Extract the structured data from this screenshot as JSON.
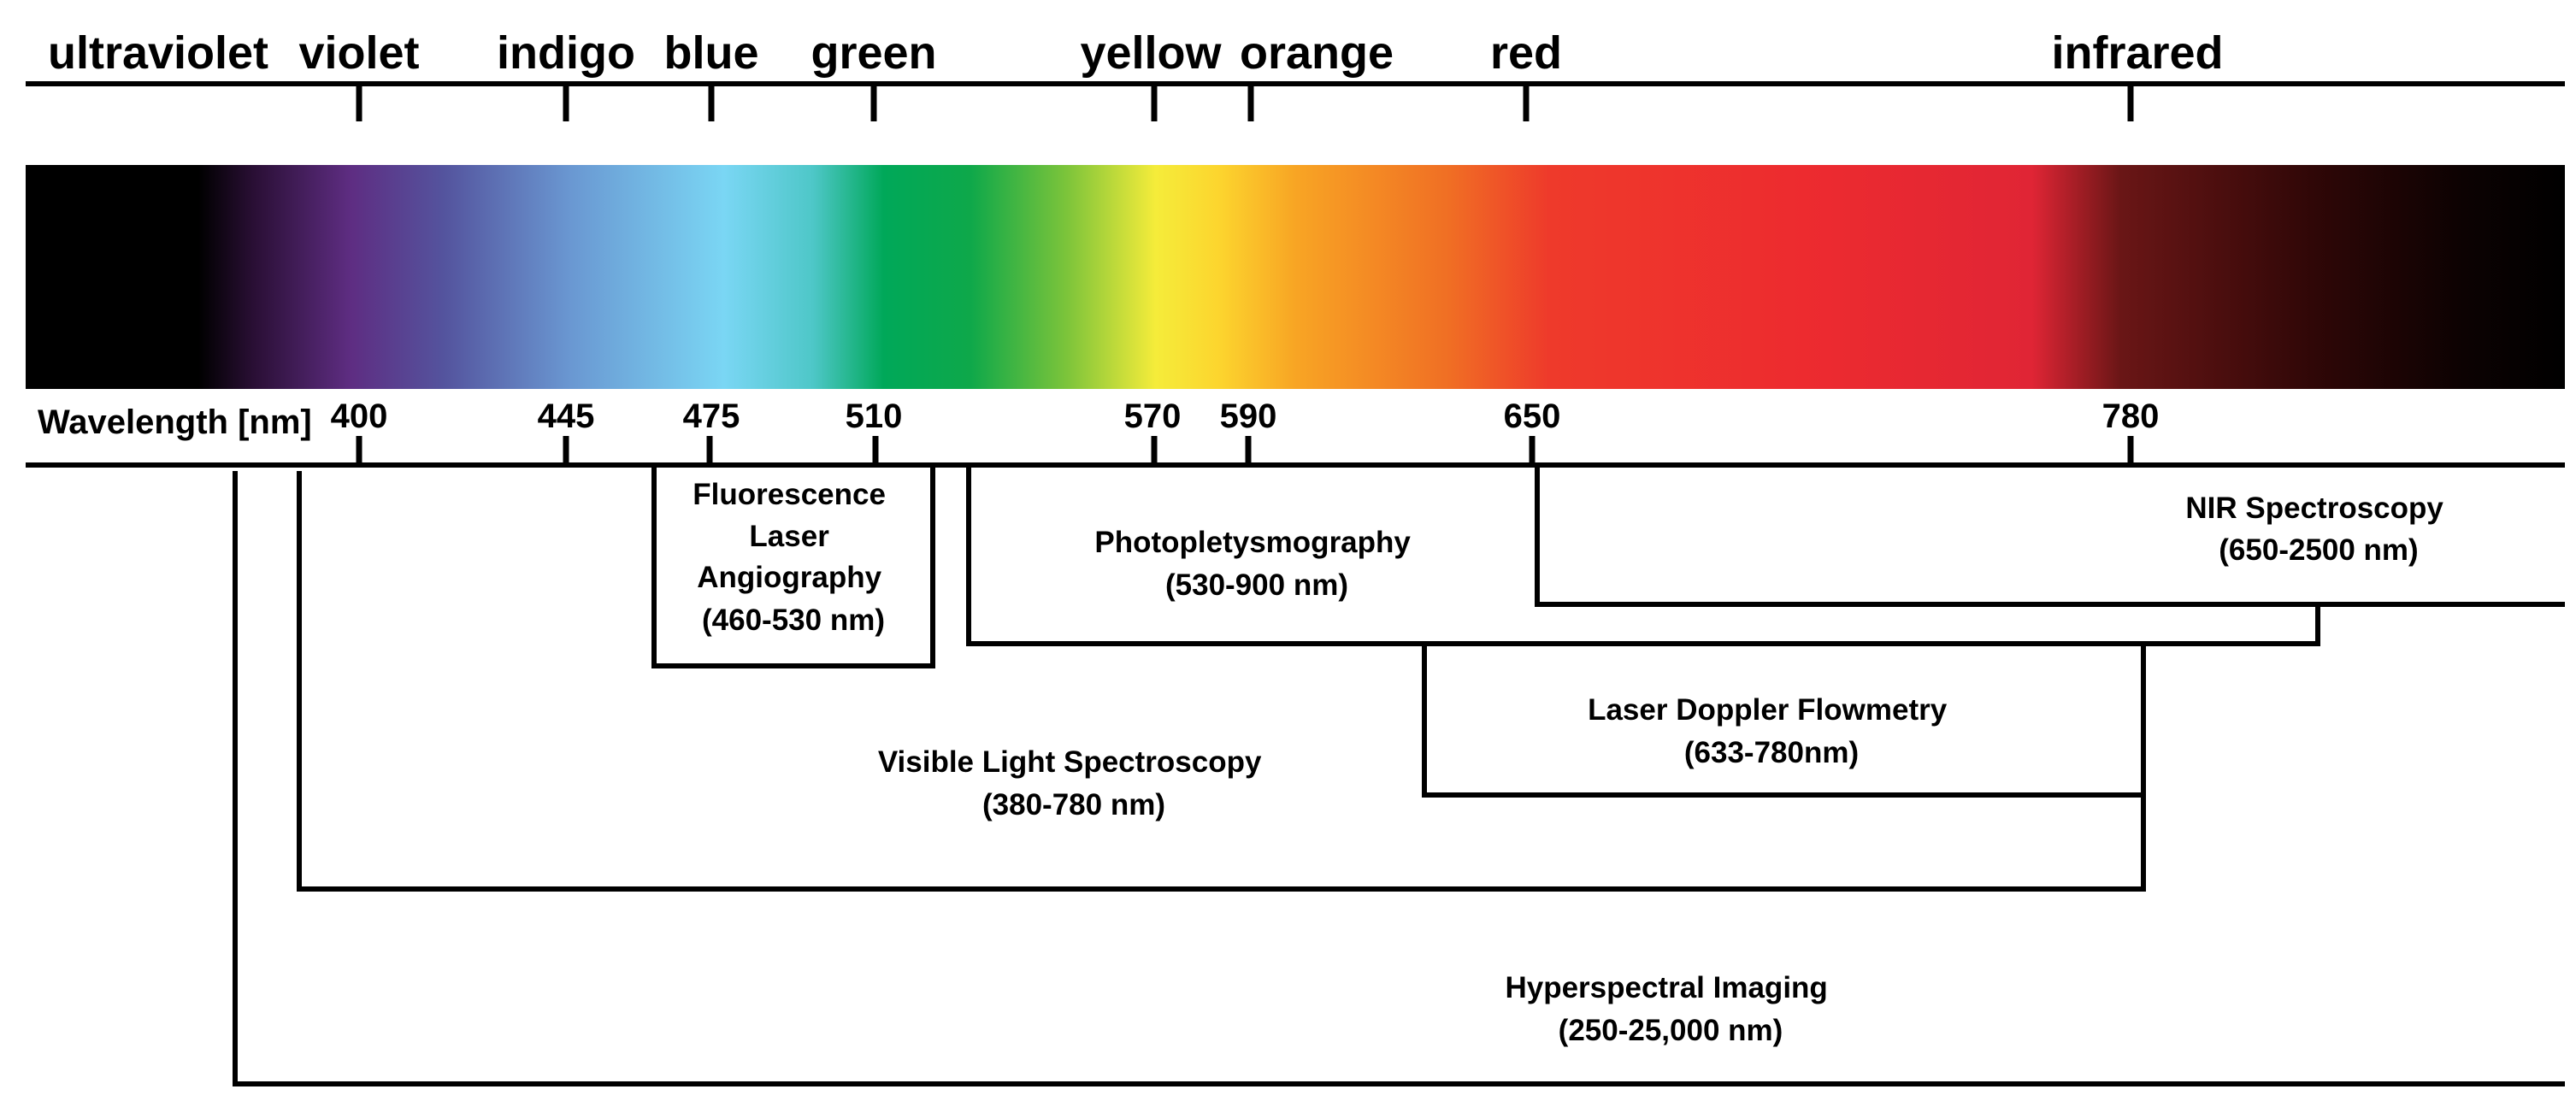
{
  "colors": {
    "spectrum_stops": [
      {
        "offset": 0.0,
        "color": "#000000"
      },
      {
        "offset": 0.068,
        "color": "#000000"
      },
      {
        "offset": 0.09,
        "color": "#2a0f35"
      },
      {
        "offset": 0.128,
        "color": "#5e2d82"
      },
      {
        "offset": 0.165,
        "color": "#54549e"
      },
      {
        "offset": 0.215,
        "color": "#6a98d2"
      },
      {
        "offset": 0.275,
        "color": "#7ad6f4"
      },
      {
        "offset": 0.31,
        "color": "#4ec7c8"
      },
      {
        "offset": 0.338,
        "color": "#00a859"
      },
      {
        "offset": 0.372,
        "color": "#0ea84a"
      },
      {
        "offset": 0.41,
        "color": "#7cc43a"
      },
      {
        "offset": 0.445,
        "color": "#f5ec3a"
      },
      {
        "offset": 0.47,
        "color": "#fcd52e"
      },
      {
        "offset": 0.5,
        "color": "#f8a524"
      },
      {
        "offset": 0.56,
        "color": "#f06f24"
      },
      {
        "offset": 0.6,
        "color": "#ee3a2b"
      },
      {
        "offset": 0.7,
        "color": "#ed2b2f"
      },
      {
        "offset": 0.79,
        "color": "#e02535"
      },
      {
        "offset": 0.825,
        "color": "#6a1616"
      },
      {
        "offset": 0.9,
        "color": "#300707"
      },
      {
        "offset": 0.96,
        "color": "#0c0202"
      },
      {
        "offset": 1.0,
        "color": "#000000"
      }
    ]
  },
  "spectrum": {
    "color_names": [
      {
        "id": "ultraviolet",
        "label": "ultraviolet",
        "tick": false
      },
      {
        "id": "violet",
        "label": "violet",
        "tick": true
      },
      {
        "id": "indigo",
        "label": "indigo",
        "tick": true
      },
      {
        "id": "blue",
        "label": "blue",
        "tick": true
      },
      {
        "id": "green",
        "label": "green",
        "tick": true
      },
      {
        "id": "yellow",
        "label": "yellow",
        "tick": true
      },
      {
        "id": "orange",
        "label": "orange",
        "tick": true
      },
      {
        "id": "red",
        "label": "red",
        "tick": true
      },
      {
        "id": "infrared",
        "label": "infrared",
        "tick": true
      }
    ],
    "axis_label": "Wavelength [nm]",
    "wavelengths": [
      "400",
      "445",
      "475",
      "510",
      "570",
      "590",
      "650",
      "780"
    ]
  },
  "techniques": {
    "fluorescence": {
      "lines": [
        "Fluorescence",
        "Laser",
        "Angiography",
        "(460-530 nm)"
      ]
    },
    "ppg": {
      "lines": [
        "Photopletysmography",
        "(530-900 nm)"
      ]
    },
    "nir": {
      "lines": [
        "NIR Spectroscopy",
        "(650-2500 nm)"
      ]
    },
    "ldf": {
      "lines": [
        "Laser Doppler Flowmetry",
        "(633-780nm)"
      ]
    },
    "vls": {
      "lines": [
        "Visible Light Spectroscopy",
        "(380-780 nm)"
      ]
    },
    "hsi": {
      "lines": [
        "Hyperspectral Imaging",
        "(250-25,000 nm)"
      ]
    }
  }
}
